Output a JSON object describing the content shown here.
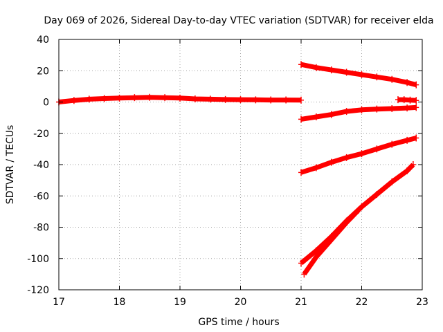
{
  "chart_data": {
    "type": "scatter",
    "title": "Day 069 of 2026, Sidereal Day-to-day VTEC variation (SDTVAR) for receiver elda",
    "xlabel": "GPS time / hours",
    "ylabel": "SDTVAR / TECUs",
    "xlim": [
      17,
      23
    ],
    "ylim": [
      -120,
      40
    ],
    "xticks": [
      "17",
      "18",
      "19",
      "20",
      "21",
      "22",
      "23"
    ],
    "yticks": [
      "40",
      "20",
      "0",
      "-20",
      "-40",
      "-60",
      "-80",
      "-100",
      "-120"
    ],
    "grid": true,
    "legend": "none",
    "marker_color": "#ff0000",
    "series": [
      {
        "x": [
          17.0,
          17.25,
          17.5,
          17.75,
          18.0,
          18.25,
          18.5,
          18.75,
          19.0,
          19.25,
          19.5,
          19.75,
          20.0,
          20.25,
          20.5,
          20.75,
          21.0
        ],
        "values": [
          0.0,
          1.0,
          1.8,
          2.2,
          2.5,
          2.8,
          3.0,
          2.8,
          2.5,
          2.0,
          1.8,
          1.6,
          1.5,
          1.4,
          1.3,
          1.3,
          1.2
        ]
      },
      {
        "x": [
          21.0,
          21.25,
          21.5,
          21.75,
          22.0,
          22.25,
          22.5,
          22.75,
          22.9
        ],
        "values": [
          24,
          22,
          20.5,
          19,
          17.5,
          16,
          14.5,
          12.5,
          11
        ]
      },
      {
        "x": [
          21.0,
          21.25,
          21.5,
          21.75,
          22.0,
          22.25,
          22.5,
          22.75,
          22.9
        ],
        "values": [
          -11,
          -9.5,
          -8,
          -6,
          -5,
          -4.5,
          -4.2,
          -3.8,
          -3.5
        ]
      },
      {
        "x": [
          22.6,
          22.7,
          22.8,
          22.9
        ],
        "values": [
          1.5,
          1.5,
          1.2,
          1.0
        ]
      },
      {
        "x": [
          21.0,
          21.25,
          21.5,
          21.75,
          22.0,
          22.25,
          22.5,
          22.75,
          22.9
        ],
        "values": [
          -45,
          -42,
          -38.5,
          -35.5,
          -33,
          -30,
          -27,
          -24.5,
          -23
        ]
      },
      {
        "x": [
          21.0,
          21.25,
          21.5,
          21.75,
          22.0,
          22.25,
          22.5,
          22.75,
          22.85
        ],
        "values": [
          -103,
          -95,
          -86,
          -76,
          -67,
          -59,
          -51,
          -44,
          -40
        ]
      },
      {
        "x": [
          21.05,
          21.25,
          21.5,
          21.75,
          21.95
        ],
        "values": [
          -110,
          -99,
          -88,
          -77,
          -69
        ]
      }
    ]
  }
}
